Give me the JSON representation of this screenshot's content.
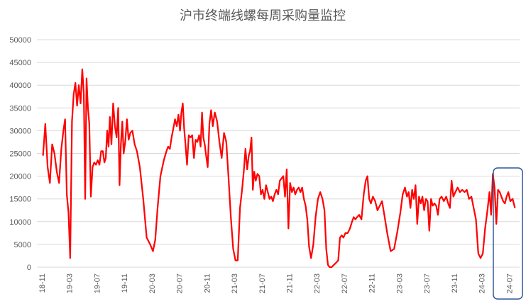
{
  "chart_data": {
    "type": "line",
    "title": "沪市终端线螺每周采购量监控",
    "xlabel": "",
    "ylabel": "",
    "ylim": [
      0,
      50000
    ],
    "yticks": [
      0,
      5000,
      10000,
      15000,
      20000,
      25000,
      30000,
      35000,
      40000,
      45000,
      50000
    ],
    "grid": "horizontal",
    "legend": "none",
    "x_range": [
      "2018-11",
      "2024-08"
    ],
    "xticks": [
      "18-11",
      "19-03",
      "19-07",
      "19-11",
      "20-03",
      "20-07",
      "20-11",
      "21-03",
      "21-07",
      "21-11",
      "22-03",
      "22-07",
      "22-11",
      "23-03",
      "23-07",
      "23-11",
      "24-03",
      "24-07"
    ],
    "colors": {
      "line": "#ff0000",
      "highlight_box": "#2f5597"
    },
    "highlight": {
      "from": "2024-05",
      "to": "2024-08"
    },
    "series": [
      {
        "points": [
          [
            "2018-11",
            24500
          ],
          [
            "2018-11",
            31500
          ],
          [
            "2018-11",
            22000
          ],
          [
            "2018-12",
            18500
          ],
          [
            "2018-12",
            27000
          ],
          [
            "2018-12",
            25000
          ],
          [
            "2019-01",
            21000
          ],
          [
            "2019-01",
            18500
          ],
          [
            "2019-01",
            26000
          ],
          [
            "2019-02",
            30000
          ],
          [
            "2019-02",
            32500
          ],
          [
            "2019-02",
            16000
          ],
          [
            "2019-02",
            12000
          ],
          [
            "2019-03",
            2000
          ],
          [
            "2019-03",
            32000
          ],
          [
            "2019-03",
            38000
          ],
          [
            "2019-03",
            40500
          ],
          [
            "2019-04",
            35500
          ],
          [
            "2019-04",
            40000
          ],
          [
            "2019-04",
            36000
          ],
          [
            "2019-04",
            43500
          ],
          [
            "2019-05",
            38000
          ],
          [
            "2019-05",
            15000
          ],
          [
            "2019-05",
            41500
          ],
          [
            "2019-05",
            35000
          ],
          [
            "2019-05",
            31500
          ],
          [
            "2019-06",
            15500
          ],
          [
            "2019-06",
            22000
          ],
          [
            "2019-06",
            23000
          ],
          [
            "2019-06",
            22500
          ],
          [
            "2019-07",
            23500
          ],
          [
            "2019-07",
            22500
          ],
          [
            "2019-07",
            25500
          ],
          [
            "2019-07",
            25500
          ],
          [
            "2019-08",
            23000
          ],
          [
            "2019-08",
            24000
          ],
          [
            "2019-08",
            30000
          ],
          [
            "2019-08",
            26500
          ],
          [
            "2019-08",
            33000
          ],
          [
            "2019-09",
            27000
          ],
          [
            "2019-09",
            36000
          ],
          [
            "2019-09",
            31000
          ],
          [
            "2019-09",
            28500
          ],
          [
            "2019-10",
            35000
          ],
          [
            "2019-10",
            18000
          ],
          [
            "2019-10",
            27000
          ],
          [
            "2019-10",
            32000
          ],
          [
            "2019-10",
            25000
          ],
          [
            "2019-11",
            27500
          ],
          [
            "2019-11",
            32500
          ],
          [
            "2019-11",
            28000
          ],
          [
            "2019-11",
            29500
          ],
          [
            "2019-12",
            30000
          ],
          [
            "2019-12",
            27000
          ],
          [
            "2019-12",
            25500
          ],
          [
            "2020-01",
            22000
          ],
          [
            "2020-01",
            15000
          ],
          [
            "2020-02",
            6500
          ],
          [
            "2020-02",
            5000
          ],
          [
            "2020-03",
            3500
          ],
          [
            "2020-03",
            6000
          ],
          [
            "2020-03",
            13000
          ],
          [
            "2020-04",
            20000
          ],
          [
            "2020-04",
            23500
          ],
          [
            "2020-05",
            25500
          ],
          [
            "2020-05",
            26500
          ],
          [
            "2020-05",
            26000
          ],
          [
            "2020-05",
            28500
          ],
          [
            "2020-06",
            30500
          ],
          [
            "2020-06",
            32500
          ],
          [
            "2020-06",
            31000
          ],
          [
            "2020-06",
            33500
          ],
          [
            "2020-07",
            30000
          ],
          [
            "2020-07",
            34000
          ],
          [
            "2020-07",
            36000
          ],
          [
            "2020-07",
            30500
          ],
          [
            "2020-07",
            27000
          ],
          [
            "2020-08",
            22500
          ],
          [
            "2020-08",
            29000
          ],
          [
            "2020-08",
            28500
          ],
          [
            "2020-08",
            29000
          ],
          [
            "2020-09",
            24000
          ],
          [
            "2020-09",
            28000
          ],
          [
            "2020-09",
            27500
          ],
          [
            "2020-09",
            29000
          ],
          [
            "2020-10",
            26500
          ],
          [
            "2020-10",
            34000
          ],
          [
            "2020-10",
            28500
          ],
          [
            "2020-10",
            27000
          ],
          [
            "2020-10",
            24500
          ],
          [
            "2020-11",
            22000
          ],
          [
            "2020-11",
            31500
          ],
          [
            "2020-11",
            34500
          ],
          [
            "2020-11",
            31000
          ],
          [
            "2020-12",
            34000
          ],
          [
            "2020-12",
            32000
          ],
          [
            "2020-12",
            27500
          ],
          [
            "2021-01",
            24000
          ],
          [
            "2021-01",
            29500
          ],
          [
            "2021-01",
            27500
          ],
          [
            "2021-02",
            19500
          ],
          [
            "2021-02",
            11000
          ],
          [
            "2021-02",
            4000
          ],
          [
            "2021-03",
            1500
          ],
          [
            "2021-03",
            1500
          ],
          [
            "2021-03",
            13000
          ],
          [
            "2021-04",
            17000
          ],
          [
            "2021-04",
            21000
          ],
          [
            "2021-04",
            26000
          ],
          [
            "2021-04",
            21500
          ],
          [
            "2021-05",
            24500
          ],
          [
            "2021-05",
            25500
          ],
          [
            "2021-05",
            28500
          ],
          [
            "2021-05",
            17000
          ],
          [
            "2021-05",
            21000
          ],
          [
            "2021-06",
            19000
          ],
          [
            "2021-06",
            20500
          ],
          [
            "2021-06",
            20000
          ],
          [
            "2021-06",
            16000
          ],
          [
            "2021-07",
            17000
          ],
          [
            "2021-07",
            15000
          ],
          [
            "2021-07",
            18000
          ],
          [
            "2021-07",
            16500
          ],
          [
            "2021-08",
            15000
          ],
          [
            "2021-08",
            15500
          ],
          [
            "2021-08",
            14500
          ],
          [
            "2021-08",
            16000
          ],
          [
            "2021-09",
            17000
          ],
          [
            "2021-09",
            16000
          ],
          [
            "2021-09",
            19000
          ],
          [
            "2021-09",
            19500
          ],
          [
            "2021-10",
            20000
          ],
          [
            "2021-10",
            15500
          ],
          [
            "2021-10",
            21500
          ],
          [
            "2021-10",
            8500
          ],
          [
            "2021-11",
            18500
          ],
          [
            "2021-11",
            16500
          ],
          [
            "2021-11",
            17500
          ],
          [
            "2021-11",
            16000
          ],
          [
            "2021-12",
            17000
          ],
          [
            "2021-12",
            17500
          ],
          [
            "2021-12",
            16500
          ],
          [
            "2021-12",
            17500
          ],
          [
            "2022-01",
            15000
          ],
          [
            "2022-01",
            13500
          ],
          [
            "2022-01",
            10500
          ],
          [
            "2022-01",
            4500
          ],
          [
            "2022-02",
            2000
          ],
          [
            "2022-02",
            5000
          ],
          [
            "2022-02",
            11000
          ],
          [
            "2022-03",
            15000
          ],
          [
            "2022-03",
            16500
          ],
          [
            "2022-03",
            15000
          ],
          [
            "2022-04",
            12500
          ],
          [
            "2022-04",
            4000
          ],
          [
            "2022-04",
            500
          ],
          [
            "2022-04",
            0
          ],
          [
            "2022-05",
            0
          ],
          [
            "2022-05",
            500
          ],
          [
            "2022-05",
            1000
          ],
          [
            "2022-06",
            1500
          ],
          [
            "2022-06",
            6500
          ],
          [
            "2022-06",
            7000
          ],
          [
            "2022-06",
            6500
          ],
          [
            "2022-07",
            7500
          ],
          [
            "2022-07",
            7500
          ],
          [
            "2022-07",
            8500
          ],
          [
            "2022-08",
            10000
          ],
          [
            "2022-08",
            11000
          ],
          [
            "2022-08",
            10500
          ],
          [
            "2022-08",
            11000
          ],
          [
            "2022-09",
            11500
          ],
          [
            "2022-09",
            10500
          ],
          [
            "2022-09",
            16000
          ],
          [
            "2022-10",
            19000
          ],
          [
            "2022-10",
            20000
          ],
          [
            "2022-10",
            15000
          ],
          [
            "2022-10",
            14000
          ],
          [
            "2022-11",
            15500
          ],
          [
            "2022-11",
            14500
          ],
          [
            "2022-11",
            12500
          ],
          [
            "2022-12",
            13500
          ],
          [
            "2022-12",
            14500
          ],
          [
            "2022-12",
            11500
          ],
          [
            "2023-01",
            7500
          ],
          [
            "2023-01",
            3500
          ],
          [
            "2023-02",
            4000
          ],
          [
            "2023-02",
            8000
          ],
          [
            "2023-03",
            12000
          ],
          [
            "2023-03",
            16000
          ],
          [
            "2023-03",
            17500
          ],
          [
            "2023-04",
            15500
          ],
          [
            "2023-04",
            16500
          ],
          [
            "2023-04",
            13000
          ],
          [
            "2023-04",
            17000
          ],
          [
            "2023-05",
            15000
          ],
          [
            "2023-05",
            18000
          ],
          [
            "2023-05",
            9500
          ],
          [
            "2023-05",
            15500
          ],
          [
            "2023-06",
            14000
          ],
          [
            "2023-06",
            15500
          ],
          [
            "2023-06",
            12500
          ],
          [
            "2023-06",
            15000
          ],
          [
            "2023-07",
            14500
          ],
          [
            "2023-07",
            8000
          ],
          [
            "2023-07",
            15000
          ],
          [
            "2023-07",
            13500
          ],
          [
            "2023-08",
            14000
          ],
          [
            "2023-08",
            13500
          ],
          [
            "2023-08",
            11500
          ],
          [
            "2023-08",
            15000
          ],
          [
            "2023-09",
            15500
          ],
          [
            "2023-09",
            14500
          ],
          [
            "2023-09",
            15500
          ],
          [
            "2023-10",
            14000
          ],
          [
            "2023-10",
            13000
          ],
          [
            "2023-10",
            19000
          ],
          [
            "2023-10",
            15500
          ],
          [
            "2023-11",
            16500
          ],
          [
            "2023-11",
            17500
          ],
          [
            "2023-11",
            16500
          ],
          [
            "2023-12",
            17000
          ],
          [
            "2023-12",
            16500
          ],
          [
            "2023-12",
            17000
          ],
          [
            "2024-01",
            15000
          ],
          [
            "2024-01",
            15500
          ],
          [
            "2024-01",
            13000
          ],
          [
            "2024-02",
            10500
          ],
          [
            "2024-02",
            3000
          ],
          [
            "2024-02",
            2000
          ],
          [
            "2024-03",
            3000
          ],
          [
            "2024-03",
            8500
          ],
          [
            "2024-03",
            12500
          ],
          [
            "2024-04",
            16500
          ],
          [
            "2024-04",
            11500
          ],
          [
            "2024-04",
            20500
          ],
          [
            "2024-04",
            17500
          ],
          [
            "2024-05",
            9500
          ],
          [
            "2024-05",
            17000
          ],
          [
            "2024-05",
            16500
          ],
          [
            "2024-05",
            15500
          ],
          [
            "2024-06",
            14500
          ],
          [
            "2024-06",
            14000
          ],
          [
            "2024-06",
            15500
          ],
          [
            "2024-06",
            16500
          ],
          [
            "2024-07",
            14500
          ],
          [
            "2024-07",
            15000
          ],
          [
            "2024-07",
            13000
          ]
        ]
      }
    ]
  }
}
